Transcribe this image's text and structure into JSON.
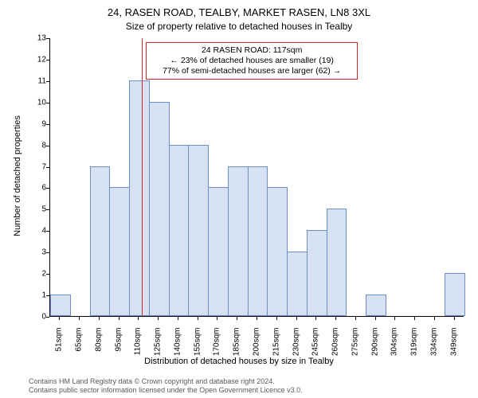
{
  "title": "24, RASEN ROAD, TEALBY, MARKET RASEN, LN8 3XL",
  "subtitle": "Size of property relative to detached houses in Tealby",
  "chart": {
    "type": "histogram",
    "ylabel": "Number of detached properties",
    "xlabel": "Distribution of detached houses by size in Tealby",
    "ylim_min": 0,
    "ylim_max": 13,
    "ytick_step": 1,
    "background_color": "#ffffff",
    "bar_fill": "#d6e2f4",
    "bar_border": "#6a8fc6",
    "marker_line_color": "#d62728",
    "marker_value": 117,
    "x_tick_labels": [
      "51sqm",
      "65sqm",
      "80sqm",
      "95sqm",
      "110sqm",
      "125sqm",
      "140sqm",
      "155sqm",
      "170sqm",
      "185sqm",
      "200sqm",
      "215sqm",
      "230sqm",
      "245sqm",
      "260sqm",
      "275sqm",
      "290sqm",
      "304sqm",
      "319sqm",
      "334sqm",
      "349sqm"
    ],
    "bar_values": [
      1,
      0,
      7,
      6,
      11,
      10,
      8,
      8,
      6,
      7,
      7,
      6,
      3,
      4,
      5,
      0,
      1,
      0,
      0,
      0,
      2
    ],
    "title_fontsize": 13,
    "subtitle_fontsize": 12,
    "axis_label_fontsize": 11,
    "tick_fontsize": 10
  },
  "annotation": {
    "line1": "24 RASEN ROAD: 117sqm",
    "line2": "← 23% of detached houses are smaller (19)",
    "line3": "77% of semi-detached houses are larger (62) →"
  },
  "footer": {
    "line1": "Contains HM Land Registry data © Crown copyright and database right 2024.",
    "line2": "Contains public sector information licensed under the Open Government Licence v3.0."
  }
}
